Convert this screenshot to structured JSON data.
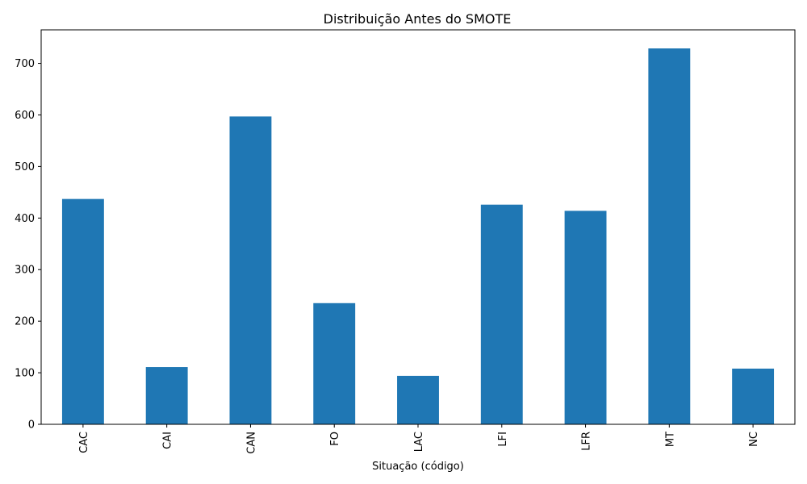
{
  "chart_data": {
    "type": "bar",
    "title": "Distribuição Antes do SMOTE",
    "xlabel": "Situação (código)",
    "ylabel": "",
    "categories": [
      "CAC",
      "CAI",
      "CAN",
      "FO",
      "LAC",
      "LFI",
      "LFR",
      "MT",
      "NC"
    ],
    "values": [
      437,
      111,
      597,
      235,
      94,
      426,
      414,
      729,
      108
    ],
    "ylim": [
      0,
      765
    ],
    "yticks": [
      0,
      100,
      200,
      300,
      400,
      500,
      600,
      700
    ],
    "bar_color": "#1f77b4",
    "grid": false,
    "legend": "none"
  }
}
